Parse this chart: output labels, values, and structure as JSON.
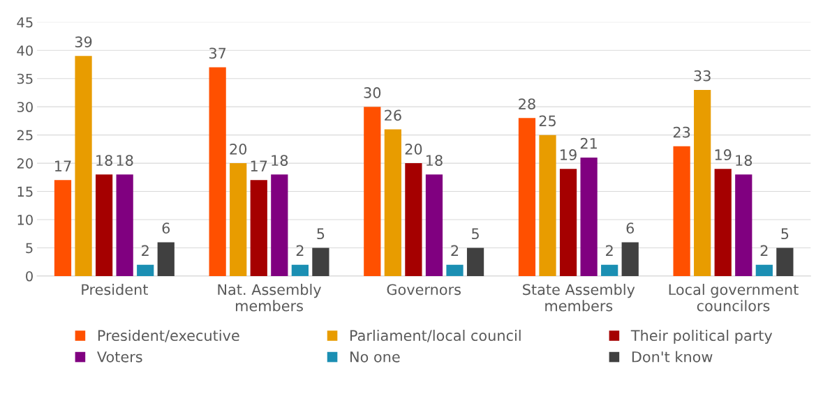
{
  "chart_data": {
    "type": "bar",
    "categories": [
      "President",
      "Nat. Assembly\nmembers",
      "Governors",
      "State Assembly\nmembers",
      "Local government\ncouncilors"
    ],
    "series": [
      {
        "name": "President/executive",
        "color": "#ff5000",
        "values": [
          17,
          37,
          30,
          28,
          23
        ]
      },
      {
        "name": "Parliament/local council",
        "color": "#e89c00",
        "values": [
          39,
          20,
          26,
          25,
          33
        ]
      },
      {
        "name": "Their political party",
        "color": "#a50000",
        "values": [
          18,
          17,
          20,
          19,
          19
        ]
      },
      {
        "name": "Voters",
        "color": "#800080",
        "values": [
          18,
          18,
          18,
          21,
          18
        ]
      },
      {
        "name": "No one",
        "color": "#1b8fb3",
        "values": [
          2,
          2,
          2,
          2,
          2
        ]
      },
      {
        "name": "Don't know",
        "color": "#404040",
        "values": [
          6,
          5,
          5,
          6,
          5
        ]
      }
    ],
    "ylim": [
      0,
      45
    ],
    "yticks": [
      0,
      5,
      10,
      15,
      20,
      25,
      30,
      35,
      40,
      45
    ],
    "grid": "y",
    "legend": "bottom",
    "data_labels": true
  }
}
